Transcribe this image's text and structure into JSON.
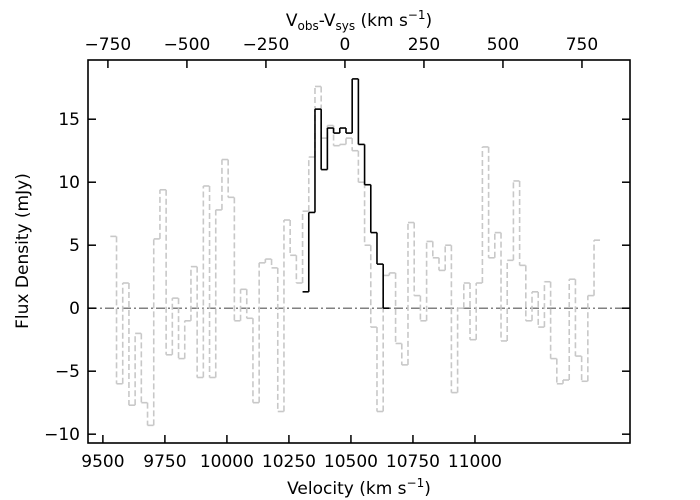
{
  "chart_data": {
    "type": "step",
    "xlabel": [
      "Velocity (km s",
      "−1",
      ")"
    ],
    "ylabel": "Flux Density (mJy)",
    "x2label": [
      "V",
      "obs",
      "-V",
      "sys",
      " (km s",
      "−1",
      ")"
    ],
    "xlim": [
      9440,
      11625
    ],
    "xticks": [
      9500,
      9750,
      10000,
      10250,
      10500,
      10750,
      11000
    ],
    "x2lim": [
      -813,
      902
    ],
    "x2ticks": [
      {
        "value": -750,
        "label": "−750"
      },
      {
        "value": -500,
        "label": "−500"
      },
      {
        "value": -250,
        "label": "−250"
      },
      0,
      250,
      500,
      750
    ],
    "ylim": [
      -10.7,
      19.7
    ],
    "yticks": [
      {
        "value": -10,
        "label": "−10"
      },
      {
        "value": -5,
        "label": "−5"
      },
      0,
      5,
      10,
      15
    ],
    "hline": 0,
    "hline_color": "#808080",
    "series": [
      {
        "color": "#c8c8c8",
        "style": "dashed",
        "bins": [
          9530,
          9555,
          9580,
          9605,
          9630,
          9655,
          9680,
          9705,
          9730,
          9755,
          9780,
          9805,
          9830,
          9855,
          9880,
          9905,
          9930,
          9955,
          9980,
          10005,
          10030,
          10055,
          10080,
          10105,
          10130,
          10155,
          10180,
          10205,
          10230,
          10255,
          10280,
          10305,
          10330,
          10355,
          10380,
          10405,
          10430,
          10455,
          10480,
          10505,
          10530,
          10555,
          10580,
          10605,
          10630,
          10655,
          10680,
          10705,
          10730,
          10755,
          10780,
          10805,
          10830,
          10855,
          10880,
          10905,
          10930,
          10955,
          10980,
          11005,
          11030,
          11055,
          11080,
          11105,
          11130,
          11155,
          11180,
          11205,
          11230,
          11255,
          11280,
          11305,
          11330,
          11355,
          11380,
          11405,
          11430,
          11455,
          11480,
          11505
        ],
        "values": [
          5.7,
          -6,
          2,
          -7.7,
          -2,
          -7.5,
          -9.3,
          5.5,
          9.4,
          -3.7,
          0.8,
          -4,
          -1,
          3.3,
          -5.5,
          9.7,
          -5.5,
          7.8,
          11.8,
          8.8,
          -1,
          1.5,
          -0.8,
          -7.5,
          3.6,
          3.9,
          3.2,
          -8.2,
          7,
          4.2,
          2,
          7.7,
          12,
          17.6,
          13.5,
          14.5,
          12.9,
          13,
          13.5,
          12.5,
          10,
          5,
          -1.5,
          -8.2,
          2.6,
          2.8,
          -2.8,
          -4.5,
          6.8,
          1,
          -1,
          5.3,
          4,
          3,
          5,
          -6.7,
          0,
          2,
          -2.5,
          2,
          12.8,
          4,
          6,
          -2.6,
          3.8,
          10.1,
          3.4,
          -1,
          1.3,
          -1.5,
          2.1,
          -4,
          -6,
          -5.7,
          2.3,
          -3.8,
          -5.8,
          1,
          5.4
        ]
      },
      {
        "color": "#000000",
        "style": "solid",
        "bins": [
          10305,
          10330,
          10355,
          10380,
          10405,
          10430,
          10455,
          10480,
          10505,
          10530,
          10555,
          10580,
          10605,
          10630,
          10655
        ],
        "values": [
          1.3,
          7.6,
          15.8,
          11,
          14.3,
          13.9,
          14.3,
          13.9,
          18.2,
          13,
          9.8,
          6,
          3.5,
          0
        ]
      }
    ]
  }
}
